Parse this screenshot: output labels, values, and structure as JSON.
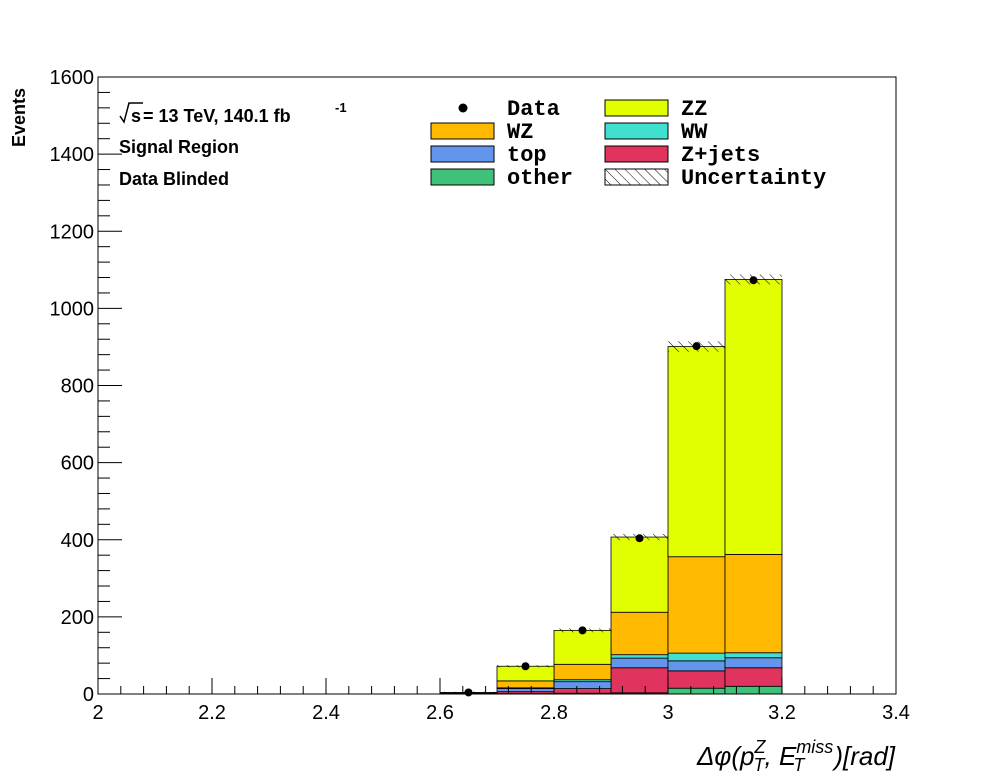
{
  "chart_data": {
    "type": "bar",
    "stacked": true,
    "xlabel_parts": {
      "main": "Δφ(p",
      "sup1": "Z",
      "sub1": "T",
      "mid": ", E",
      "sup2": "miss",
      "sub2": "T",
      "end": ")[rad]"
    },
    "ylabel": "Events",
    "xlim": [
      2,
      3.4
    ],
    "ylim": [
      0,
      1600
    ],
    "x_ticks": [
      "2",
      "2.2",
      "2.4",
      "2.6",
      "2.8",
      "3",
      "3.2",
      "3.4"
    ],
    "y_ticks": [
      "0",
      "200",
      "400",
      "600",
      "800",
      "1000",
      "1200",
      "1400",
      "1600"
    ],
    "bin_edges": [
      2.6,
      2.7,
      2.8,
      2.9,
      3.0,
      3.1,
      3.2
    ],
    "series": [
      {
        "name": "other",
        "color": "#3fc17a",
        "values": [
          0,
          1,
          2,
          3,
          15,
          20
        ]
      },
      {
        "name": "Z+jets",
        "color": "#e0335e",
        "values": [
          0,
          5,
          12,
          65,
          45,
          48
        ]
      },
      {
        "name": "top",
        "color": "#6495ed",
        "values": [
          1,
          8,
          18,
          25,
          26,
          26
        ]
      },
      {
        "name": "WW",
        "color": "#40e0d0",
        "values": [
          0,
          2,
          5,
          9,
          20,
          13
        ]
      },
      {
        "name": "WZ",
        "color": "#ffb900",
        "values": [
          1,
          18,
          40,
          110,
          250,
          255
        ]
      },
      {
        "name": "ZZ",
        "color": "#e1ff00",
        "values": [
          2,
          38,
          88,
          195,
          545,
          713
        ]
      }
    ],
    "data": {
      "name": "Data",
      "x": [
        2.65,
        2.75,
        2.85,
        2.95,
        3.05,
        3.15
      ],
      "y": [
        4,
        72,
        165,
        404,
        902,
        1073
      ]
    },
    "uncertainty": {
      "name": "Uncertainty",
      "rel": [
        0.3,
        0.04,
        0.03,
        0.02,
        0.015,
        0.012
      ]
    },
    "legend": {
      "placement": "top",
      "entries": [
        {
          "label": "Data",
          "kind": "marker"
        },
        {
          "label": "ZZ",
          "kind": "fill",
          "series": "ZZ"
        },
        {
          "label": "WZ",
          "kind": "fill",
          "series": "WZ"
        },
        {
          "label": "WW",
          "kind": "fill",
          "series": "WW"
        },
        {
          "label": "top",
          "kind": "fill",
          "series": "top"
        },
        {
          "label": "Z+jets",
          "kind": "fill",
          "series": "Z+jets"
        },
        {
          "label": "other",
          "kind": "fill",
          "series": "other"
        },
        {
          "label": "Uncertainty",
          "kind": "hatch"
        }
      ]
    },
    "annotations": {
      "sqrt_s": "s",
      "energy_lumi": " = 13 TeV, 140.1 fb",
      "lumi_exp": "-1",
      "region": "Signal Region",
      "blinding": "Data Blinded"
    }
  }
}
